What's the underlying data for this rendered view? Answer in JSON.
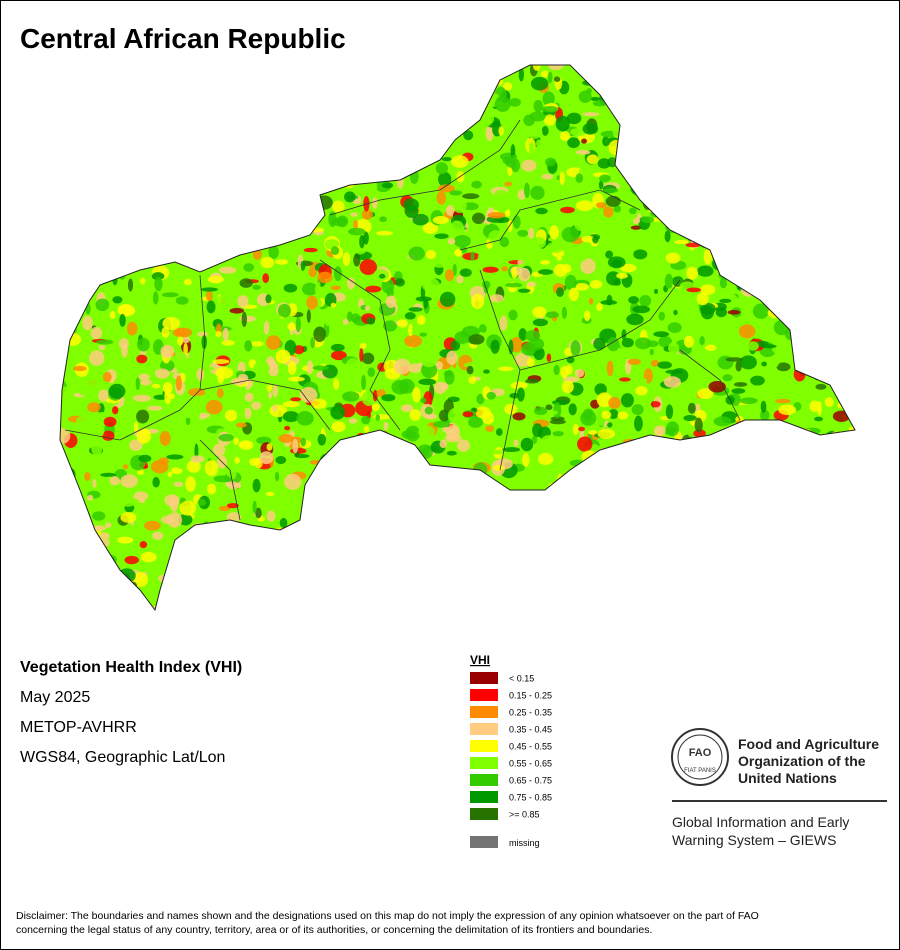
{
  "title": "Central African Republic",
  "info": [
    "Vegetation Health Index (VHI)",
    "May 2025",
    "METOP-AVHRR",
    "WGS84, Geographic Lat/Lon"
  ],
  "legend": {
    "title": "VHI",
    "items": [
      {
        "label": "< 0.15",
        "color": "#990000"
      },
      {
        "label": "0.15 - 0.25",
        "color": "#ff0000"
      },
      {
        "label": "0.25 - 0.35",
        "color": "#ff8c00"
      },
      {
        "label": "0.35 - 0.45",
        "color": "#ffcc80"
      },
      {
        "label": "0.45 - 0.55",
        "color": "#ffff00"
      },
      {
        "label": "0.55 - 0.65",
        "color": "#80ff00"
      },
      {
        "label": "0.65 - 0.75",
        "color": "#33cc00"
      },
      {
        "label": "0.75 - 0.85",
        "color": "#009900"
      },
      {
        "label": ">= 0.85",
        "color": "#267300"
      }
    ],
    "missing": {
      "label": "missing",
      "color": "#737373"
    }
  },
  "logo": {
    "emblem": "FAO",
    "motto": "FIAT PANIS",
    "org": [
      "Food and Agriculture",
      "Organization of the",
      "United Nations"
    ],
    "system": [
      "Global Information and Early",
      "Warning System – GIEWS"
    ]
  },
  "disclaimer": [
    "Disclaimer: The boundaries and names shown and the designations used on this map do not imply the expression of any opinion whatsoever on the part of FAO",
    "concerning the legal status of any country, territory, area or of its authorities, or concerning the delimitation of its frontiers and boundaries."
  ]
}
